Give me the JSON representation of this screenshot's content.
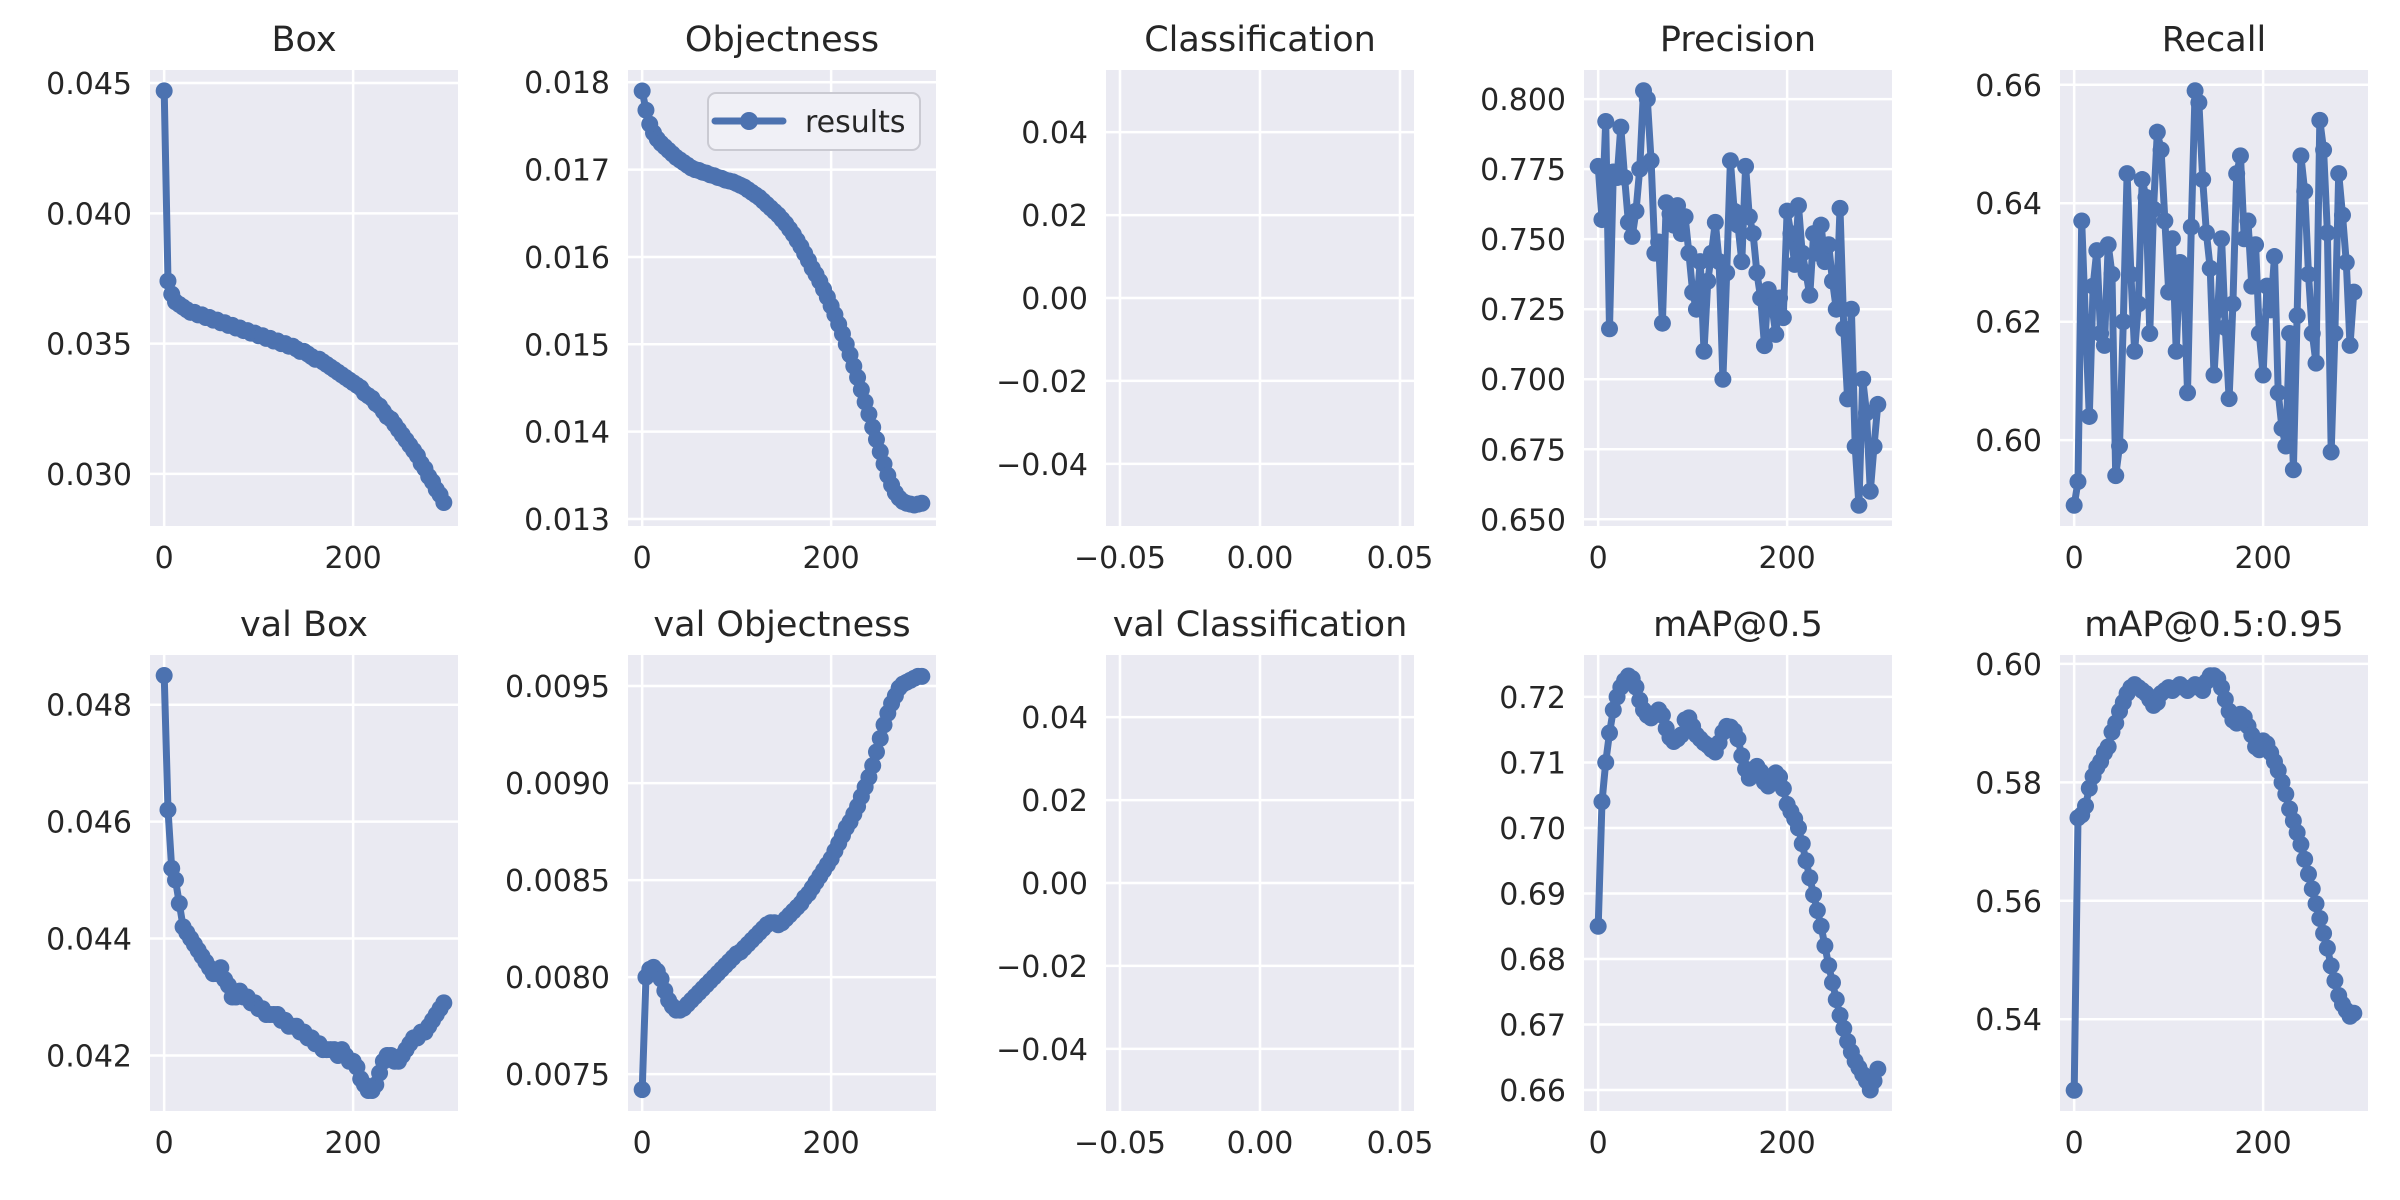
{
  "figure": {
    "kind": "training-results-grid",
    "rows": 2,
    "cols": 5,
    "x_axis_epochs_max": 296
  },
  "colors": {
    "line": "#4c72b0",
    "axes_background": "#eaeaf2",
    "grid": "#ffffff",
    "text": "#262626",
    "figure_background": "#ffffff",
    "legend_background": "#f0f0f6",
    "legend_border": "#cacad2"
  },
  "legend": {
    "label": "results"
  },
  "chart_data": [
    {
      "type": "line",
      "title": "Box",
      "xlim": [
        -15,
        311
      ],
      "ylim": [
        0.028,
        0.0455
      ],
      "xticks": {
        "values": [
          0,
          200
        ],
        "labels": [
          "0",
          "200"
        ]
      },
      "yticks": {
        "values": [
          0.03,
          0.035,
          0.04,
          0.045
        ],
        "labels": [
          "0.030",
          "0.035",
          "0.040",
          "0.045"
        ]
      },
      "series": [
        {
          "name": "results",
          "x0": 0,
          "dx": 4,
          "y": [
            0.0447,
            0.0374,
            0.0369,
            0.0366,
            0.0365,
            0.0364,
            0.0363,
            0.0362,
            0.0362,
            0.0361,
            0.0361,
            0.036,
            0.036,
            0.0359,
            0.0359,
            0.0358,
            0.0358,
            0.0357,
            0.0357,
            0.0356,
            0.0356,
            0.0355,
            0.0355,
            0.0354,
            0.0354,
            0.0353,
            0.0353,
            0.0352,
            0.0352,
            0.0351,
            0.0351,
            0.035,
            0.035,
            0.0349,
            0.0349,
            0.0348,
            0.0347,
            0.0347,
            0.0346,
            0.0345,
            0.0344,
            0.0344,
            0.0343,
            0.0342,
            0.0341,
            0.034,
            0.0339,
            0.0338,
            0.0337,
            0.0336,
            0.0335,
            0.0334,
            0.0333,
            0.0331,
            0.033,
            0.0329,
            0.0327,
            0.0326,
            0.0324,
            0.0322,
            0.0321,
            0.0319,
            0.0317,
            0.0315,
            0.0313,
            0.0311,
            0.0309,
            0.0307,
            0.0304,
            0.0302,
            0.0299,
            0.0297,
            0.0294,
            0.0292,
            0.0289
          ]
        }
      ]
    },
    {
      "type": "line",
      "title": "Objectness",
      "legend": {
        "label": "results"
      },
      "xlim": [
        -15,
        311
      ],
      "ylim": [
        0.01292,
        0.01814
      ],
      "xticks": {
        "values": [
          0,
          200
        ],
        "labels": [
          "0",
          "200"
        ]
      },
      "yticks": {
        "values": [
          0.013,
          0.014,
          0.015,
          0.016,
          0.017,
          0.018
        ],
        "labels": [
          "0.013",
          "0.014",
          "0.015",
          "0.016",
          "0.017",
          "0.018"
        ]
      },
      "series": [
        {
          "name": "results",
          "x0": 0,
          "dx": 4,
          "y": [
            0.0179,
            0.01768,
            0.01752,
            0.01742,
            0.01735,
            0.0173,
            0.01726,
            0.01722,
            0.01718,
            0.01714,
            0.01711,
            0.01708,
            0.01705,
            0.01702,
            0.017,
            0.01699,
            0.01697,
            0.01696,
            0.01694,
            0.01693,
            0.01691,
            0.0169,
            0.01688,
            0.01687,
            0.01686,
            0.01684,
            0.01682,
            0.0168,
            0.01677,
            0.01674,
            0.01671,
            0.01668,
            0.01664,
            0.0166,
            0.01656,
            0.01652,
            0.01648,
            0.01643,
            0.01638,
            0.01632,
            0.01626,
            0.01619,
            0.01612,
            0.01604,
            0.01596,
            0.01587,
            0.0158,
            0.01572,
            0.01563,
            0.01554,
            0.01544,
            0.01534,
            0.01523,
            0.01512,
            0.015,
            0.01488,
            0.01475,
            0.01462,
            0.01448,
            0.01434,
            0.0142,
            0.01405,
            0.01391,
            0.01377,
            0.01363,
            0.0135,
            0.01339,
            0.0133,
            0.01324,
            0.0132,
            0.01318,
            0.01317,
            0.01316,
            0.01317,
            0.01318
          ]
        }
      ]
    },
    {
      "type": "line",
      "title": "Classification",
      "empty": true,
      "xlim": [
        -0.055,
        0.055
      ],
      "ylim": [
        -0.055,
        0.055
      ],
      "xticks": {
        "values": [
          -0.05,
          0.0,
          0.05
        ],
        "labels": [
          "−0.05",
          "0.00",
          "0.05"
        ]
      },
      "yticks": {
        "values": [
          -0.04,
          -0.02,
          0.0,
          0.02,
          0.04
        ],
        "labels": [
          "−0.04",
          "−0.02",
          "0.00",
          "0.02",
          "0.04"
        ]
      },
      "series": []
    },
    {
      "type": "line",
      "title": "Precision",
      "xlim": [
        -15,
        311
      ],
      "ylim": [
        0.6476,
        0.8104
      ],
      "xticks": {
        "values": [
          0,
          200
        ],
        "labels": [
          "0",
          "200"
        ]
      },
      "yticks": {
        "values": [
          0.65,
          0.675,
          0.7,
          0.725,
          0.75,
          0.775,
          0.8
        ],
        "labels": [
          "0.650",
          "0.675",
          "0.700",
          "0.725",
          "0.750",
          "0.775",
          "0.800"
        ]
      },
      "series": [
        {
          "name": "results",
          "x0": 0,
          "dx": 4,
          "y": [
            0.776,
            0.757,
            0.792,
            0.718,
            0.774,
            0.772,
            0.79,
            0.772,
            0.756,
            0.751,
            0.76,
            0.775,
            0.803,
            0.8,
            0.778,
            0.745,
            0.749,
            0.72,
            0.763,
            0.759,
            0.755,
            0.762,
            0.752,
            0.758,
            0.745,
            0.731,
            0.725,
            0.742,
            0.71,
            0.735,
            0.745,
            0.756,
            0.742,
            0.7,
            0.738,
            0.778,
            0.76,
            0.755,
            0.742,
            0.776,
            0.758,
            0.752,
            0.738,
            0.729,
            0.712,
            0.732,
            0.726,
            0.716,
            0.729,
            0.722,
            0.76,
            0.752,
            0.741,
            0.762,
            0.745,
            0.738,
            0.73,
            0.752,
            0.745,
            0.755,
            0.742,
            0.748,
            0.735,
            0.725,
            0.761,
            0.718,
            0.693,
            0.725,
            0.676,
            0.655,
            0.7,
            0.688,
            0.66,
            0.676,
            0.691
          ]
        }
      ]
    },
    {
      "type": "line",
      "title": "Recall",
      "xlim": [
        -15,
        311
      ],
      "ylim": [
        0.5855,
        0.6625
      ],
      "xticks": {
        "values": [
          0,
          200
        ],
        "labels": [
          "0",
          "200"
        ]
      },
      "yticks": {
        "values": [
          0.6,
          0.62,
          0.64,
          0.66
        ],
        "labels": [
          "0.60",
          "0.62",
          "0.64",
          "0.66"
        ]
      },
      "series": [
        {
          "name": "results",
          "x0": 0,
          "dx": 4,
          "y": [
            0.589,
            0.593,
            0.637,
            0.62,
            0.604,
            0.626,
            0.632,
            0.618,
            0.616,
            0.633,
            0.628,
            0.594,
            0.599,
            0.62,
            0.645,
            0.628,
            0.615,
            0.623,
            0.644,
            0.641,
            0.618,
            0.639,
            0.652,
            0.649,
            0.637,
            0.625,
            0.634,
            0.615,
            0.63,
            0.628,
            0.608,
            0.636,
            0.659,
            0.657,
            0.644,
            0.635,
            0.629,
            0.611,
            0.622,
            0.634,
            0.619,
            0.607,
            0.623,
            0.645,
            0.648,
            0.634,
            0.637,
            0.626,
            0.633,
            0.618,
            0.611,
            0.626,
            0.622,
            0.631,
            0.608,
            0.602,
            0.599,
            0.618,
            0.595,
            0.621,
            0.648,
            0.642,
            0.628,
            0.618,
            0.613,
            0.654,
            0.649,
            0.635,
            0.598,
            0.618,
            0.645,
            0.638,
            0.63,
            0.616,
            0.625
          ]
        }
      ]
    },
    {
      "type": "line",
      "title": "val Box",
      "xlim": [
        -15,
        311
      ],
      "ylim": [
        0.04105,
        0.04885
      ],
      "xticks": {
        "values": [
          0,
          200
        ],
        "labels": [
          "0",
          "200"
        ]
      },
      "yticks": {
        "values": [
          0.042,
          0.044,
          0.046,
          0.048
        ],
        "labels": [
          "0.042",
          "0.044",
          "0.046",
          "0.048"
        ]
      },
      "series": [
        {
          "name": "results",
          "x0": 0,
          "dx": 4,
          "y": [
            0.0485,
            0.0462,
            0.0452,
            0.045,
            0.0446,
            0.0442,
            0.0441,
            0.044,
            0.0439,
            0.0438,
            0.0437,
            0.0436,
            0.0435,
            0.0434,
            0.0434,
            0.0435,
            0.0433,
            0.0432,
            0.043,
            0.043,
            0.0431,
            0.043,
            0.043,
            0.0429,
            0.0429,
            0.0428,
            0.0428,
            0.0427,
            0.0427,
            0.0427,
            0.0427,
            0.0426,
            0.0426,
            0.0425,
            0.0425,
            0.0425,
            0.0424,
            0.0424,
            0.0423,
            0.0423,
            0.0422,
            0.0422,
            0.0421,
            0.0421,
            0.0421,
            0.0421,
            0.042,
            0.0421,
            0.042,
            0.0419,
            0.0419,
            0.0418,
            0.0416,
            0.0415,
            0.0414,
            0.0414,
            0.0415,
            0.0417,
            0.0419,
            0.042,
            0.042,
            0.0419,
            0.0419,
            0.042,
            0.0421,
            0.0422,
            0.0423,
            0.0423,
            0.0424,
            0.0424,
            0.0425,
            0.0426,
            0.0427,
            0.0428,
            0.0429
          ]
        }
      ]
    },
    {
      "type": "line",
      "title": "val Objectness",
      "xlim": [
        -15,
        311
      ],
      "ylim": [
        0.00731,
        0.00966
      ],
      "xticks": {
        "values": [
          0,
          200
        ],
        "labels": [
          "0",
          "200"
        ]
      },
      "yticks": {
        "values": [
          0.0075,
          0.008,
          0.0085,
          0.009,
          0.0095
        ],
        "labels": [
          "0.0075",
          "0.0080",
          "0.0085",
          "0.0090",
          "0.0095"
        ]
      },
      "series": [
        {
          "name": "results",
          "x0": 0,
          "dx": 4,
          "y": [
            0.00742,
            0.008,
            0.00804,
            0.00805,
            0.00803,
            0.00799,
            0.00793,
            0.00788,
            0.00785,
            0.00783,
            0.00783,
            0.00784,
            0.00786,
            0.00788,
            0.0079,
            0.00792,
            0.00794,
            0.00796,
            0.00798,
            0.008,
            0.00802,
            0.00804,
            0.00806,
            0.00808,
            0.0081,
            0.00812,
            0.00813,
            0.00815,
            0.00817,
            0.00819,
            0.00821,
            0.00823,
            0.00825,
            0.00827,
            0.00828,
            0.00828,
            0.00827,
            0.00828,
            0.0083,
            0.00832,
            0.00834,
            0.00836,
            0.00838,
            0.00841,
            0.00843,
            0.00846,
            0.00849,
            0.00852,
            0.00855,
            0.00858,
            0.00861,
            0.00865,
            0.00869,
            0.00873,
            0.00877,
            0.0088,
            0.00884,
            0.00888,
            0.00893,
            0.00898,
            0.00903,
            0.00909,
            0.00916,
            0.00923,
            0.0093,
            0.00936,
            0.00941,
            0.00945,
            0.00949,
            0.00951,
            0.00952,
            0.00953,
            0.00954,
            0.00955,
            0.00955
          ]
        }
      ]
    },
    {
      "type": "line",
      "title": "val Classification",
      "empty": true,
      "xlim": [
        -0.055,
        0.055
      ],
      "ylim": [
        -0.055,
        0.055
      ],
      "xticks": {
        "values": [
          -0.05,
          0.0,
          0.05
        ],
        "labels": [
          "−0.05",
          "0.00",
          "0.05"
        ]
      },
      "yticks": {
        "values": [
          -0.04,
          -0.02,
          0.0,
          0.02,
          0.04
        ],
        "labels": [
          "−0.04",
          "−0.02",
          "0.00",
          "0.02",
          "0.04"
        ]
      },
      "series": []
    },
    {
      "type": "line",
      "title": "mAP@0.5",
      "xlim": [
        -15,
        311
      ],
      "ylim": [
        0.6568,
        0.7264
      ],
      "xticks": {
        "values": [
          0,
          200
        ],
        "labels": [
          "0",
          "200"
        ]
      },
      "yticks": {
        "values": [
          0.66,
          0.67,
          0.68,
          0.69,
          0.7,
          0.71,
          0.72
        ],
        "labels": [
          "0.66",
          "0.67",
          "0.68",
          "0.69",
          "0.70",
          "0.71",
          "0.72"
        ]
      },
      "series": [
        {
          "name": "results",
          "x0": 0,
          "dx": 4,
          "y": [
            0.685,
            0.704,
            0.71,
            0.7145,
            0.718,
            0.72,
            0.7215,
            0.7225,
            0.7232,
            0.7228,
            0.7215,
            0.7195,
            0.718,
            0.7172,
            0.7168,
            0.7175,
            0.718,
            0.7172,
            0.7152,
            0.7138,
            0.7132,
            0.7136,
            0.7142,
            0.7165,
            0.7168,
            0.7155,
            0.7142,
            0.7136,
            0.713,
            0.7126,
            0.712,
            0.7116,
            0.713,
            0.7146,
            0.7155,
            0.7154,
            0.7148,
            0.7136,
            0.711,
            0.709,
            0.7076,
            0.7082,
            0.7094,
            0.7086,
            0.707,
            0.7064,
            0.707,
            0.7084,
            0.7078,
            0.706,
            0.7036,
            0.7025,
            0.7014,
            0.7,
            0.6976,
            0.695,
            0.6924,
            0.6898,
            0.6874,
            0.685,
            0.682,
            0.679,
            0.6764,
            0.6738,
            0.6714,
            0.6694,
            0.6674,
            0.6658,
            0.6644,
            0.6634,
            0.6624,
            0.6614,
            0.66,
            0.6614,
            0.6632
          ]
        }
      ]
    },
    {
      "type": "line",
      "title": "mAP@0.5:0.95",
      "xlim": [
        -15,
        311
      ],
      "ylim": [
        0.5245,
        0.6015
      ],
      "xticks": {
        "values": [
          0,
          200
        ],
        "labels": [
          "0",
          "200"
        ]
      },
      "yticks": {
        "values": [
          0.54,
          0.56,
          0.58,
          0.6
        ],
        "labels": [
          "0.54",
          "0.56",
          "0.58",
          "0.60"
        ]
      },
      "series": [
        {
          "name": "results",
          "x0": 0,
          "dx": 4,
          "y": [
            0.528,
            0.574,
            0.5745,
            0.576,
            0.579,
            0.581,
            0.5825,
            0.5835,
            0.585,
            0.586,
            0.5885,
            0.59,
            0.592,
            0.5935,
            0.595,
            0.596,
            0.5965,
            0.596,
            0.5955,
            0.595,
            0.594,
            0.593,
            0.5935,
            0.595,
            0.5955,
            0.596,
            0.5955,
            0.596,
            0.5965,
            0.596,
            0.5955,
            0.596,
            0.5965,
            0.596,
            0.5955,
            0.597,
            0.598,
            0.598,
            0.5975,
            0.596,
            0.594,
            0.592,
            0.5905,
            0.59,
            0.5915,
            0.591,
            0.5895,
            0.588,
            0.586,
            0.5855,
            0.587,
            0.5865,
            0.585,
            0.5835,
            0.582,
            0.58,
            0.578,
            0.5755,
            0.5735,
            0.5715,
            0.5695,
            0.567,
            0.5645,
            0.562,
            0.5595,
            0.557,
            0.5545,
            0.552,
            0.549,
            0.5465,
            0.544,
            0.5425,
            0.5415,
            0.5405,
            0.541
          ]
        }
      ]
    }
  ]
}
